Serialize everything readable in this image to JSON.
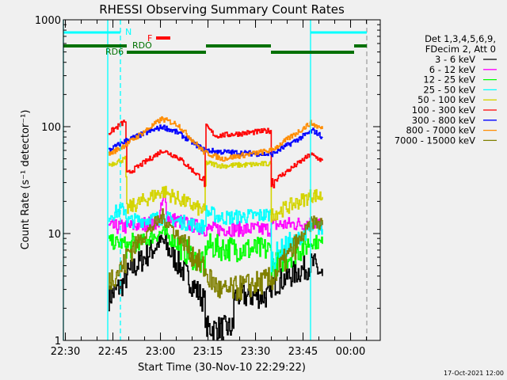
{
  "chart_data": {
    "type": "line",
    "title": "RHESSI Observing Summary Count Rates",
    "xlabel": "Start Time (30-Nov-10 22:29:22)",
    "ylabel": "Count Rate (s⁻¹ detector⁻¹)",
    "yscale": "log",
    "ylim": [
      1,
      1000
    ],
    "xlim_minutes_from_start": [
      0,
      100
    ],
    "y_ticks": [
      {
        "v": 1,
        "label": "1"
      },
      {
        "v": 10,
        "label": "10"
      },
      {
        "v": 100,
        "label": "100"
      },
      {
        "v": 1000,
        "label": "1000"
      }
    ],
    "x_ticks": [
      {
        "m": 0.633,
        "label": "22:30"
      },
      {
        "m": 15.633,
        "label": "22:45"
      },
      {
        "m": 30.633,
        "label": "23:00"
      },
      {
        "m": 45.633,
        "label": "23:15"
      },
      {
        "m": 60.633,
        "label": "23:30"
      },
      {
        "m": 75.633,
        "label": "23:45"
      },
      {
        "m": 90.633,
        "label": "00:00"
      }
    ],
    "legend_header": [
      "Det 1,3,4,5,6,9,",
      "FDecim 2, Att 0"
    ],
    "legend_position": "right",
    "series": [
      {
        "name": "3 - 6 keV",
        "color": "#000000",
        "points": [
          [
            14.25,
            2.5
          ],
          [
            19.5,
            3.6
          ],
          [
            20,
            4.1
          ],
          [
            31,
            8.7
          ],
          [
            44.5,
            2.3
          ],
          [
            45,
            1.3
          ],
          [
            53.7,
            1.3
          ],
          [
            53.8,
            2.6
          ],
          [
            65.5,
            2.6
          ],
          [
            65.6,
            3.3
          ],
          [
            78.75,
            5.2
          ],
          [
            81.75,
            4
          ]
        ]
      },
      {
        "name": "6 - 12 keV",
        "color": "#ff00ff",
        "points": [
          [
            14.25,
            11.5
          ],
          [
            20,
            11.5
          ],
          [
            30,
            13
          ],
          [
            31.7,
            23
          ],
          [
            33,
            14
          ],
          [
            44.5,
            11
          ],
          [
            45,
            11
          ],
          [
            65.5,
            11
          ],
          [
            65.6,
            12
          ],
          [
            78.75,
            12.5
          ],
          [
            81.75,
            12
          ]
        ]
      },
      {
        "name": "12 - 25 keV",
        "color": "#00ff00",
        "points": [
          [
            14.25,
            8.4
          ],
          [
            19.5,
            8
          ],
          [
            20,
            7.3
          ],
          [
            31.25,
            10.3
          ],
          [
            44.5,
            4.9
          ],
          [
            45,
            7.7
          ],
          [
            50,
            7.3
          ],
          [
            65.5,
            7
          ],
          [
            65.6,
            4.9
          ],
          [
            78.75,
            8.5
          ],
          [
            81.75,
            8
          ]
        ]
      },
      {
        "name": "25 - 50 keV",
        "color": "#00ffff",
        "points": [
          [
            14.25,
            15
          ],
          [
            19.5,
            17
          ],
          [
            20,
            13
          ],
          [
            31.25,
            14
          ],
          [
            44.5,
            11.5
          ],
          [
            45,
            16
          ],
          [
            50,
            14
          ],
          [
            65.5,
            15
          ],
          [
            65.6,
            5.8
          ],
          [
            78.75,
            11.5
          ],
          [
            81.75,
            11
          ]
        ]
      },
      {
        "name": "50 - 100 keV",
        "color": "#d4d400",
        "points": [
          [
            14.25,
            44
          ],
          [
            19.5,
            50
          ],
          [
            20,
            17
          ],
          [
            31.25,
            25
          ],
          [
            44.5,
            16
          ],
          [
            45,
            46
          ],
          [
            50,
            43
          ],
          [
            65.5,
            45
          ],
          [
            65.6,
            15
          ],
          [
            78.75,
            23
          ],
          [
            81.75,
            22
          ]
        ]
      },
      {
        "name": "100 - 300 keV",
        "color": "#ff0000",
        "points": [
          [
            14.25,
            87
          ],
          [
            19.5,
            113
          ],
          [
            20,
            36
          ],
          [
            31.25,
            60
          ],
          [
            36,
            52
          ],
          [
            44.5,
            31
          ],
          [
            45,
            100
          ],
          [
            48,
            82
          ],
          [
            65.5,
            92
          ],
          [
            65.6,
            30
          ],
          [
            78,
            55
          ],
          [
            81.75,
            48
          ]
        ]
      },
      {
        "name": "300 - 800 keV",
        "color": "#0000ff",
        "points": [
          [
            14.25,
            60
          ],
          [
            20,
            75
          ],
          [
            31.25,
            100
          ],
          [
            36,
            88
          ],
          [
            44.5,
            60
          ],
          [
            45,
            60
          ],
          [
            50,
            58
          ],
          [
            65.5,
            55
          ],
          [
            65.6,
            55
          ],
          [
            78.75,
            92
          ],
          [
            81.75,
            80
          ]
        ]
      },
      {
        "name": "800 - 7000 keV",
        "color": "#ff8c00",
        "points": [
          [
            14.25,
            55
          ],
          [
            20,
            69
          ],
          [
            31,
            118
          ],
          [
            36,
            105
          ],
          [
            44.5,
            57
          ],
          [
            45,
            57
          ],
          [
            50,
            50
          ],
          [
            65.5,
            60
          ],
          [
            65.6,
            60
          ],
          [
            78,
            108
          ],
          [
            81.75,
            95
          ]
        ]
      },
      {
        "name": "7000 - 15000 keV",
        "color": "#808000",
        "points": [
          [
            14.25,
            3.7
          ],
          [
            19.5,
            5.2
          ],
          [
            20,
            6.5
          ],
          [
            31.25,
            14.5
          ],
          [
            44.5,
            4.6
          ],
          [
            45,
            4.1
          ],
          [
            50,
            2.8
          ],
          [
            65.5,
            3.7
          ],
          [
            65.6,
            3.7
          ],
          [
            78.75,
            13
          ],
          [
            81.75,
            12
          ]
        ]
      }
    ],
    "vertical_markers": [
      {
        "m": 0,
        "color": "#00ffff",
        "style": "solid"
      },
      {
        "m": 14,
        "color": "#00ffff",
        "style": "solid"
      },
      {
        "m": 18,
        "color": "#00ffff",
        "style": "dashed"
      },
      {
        "m": 78,
        "color": "#00ffff",
        "style": "solid"
      },
      {
        "m": 95.75,
        "color": "#a0a0a0",
        "style": "dashed"
      }
    ],
    "flag_bars": [
      {
        "label": "N",
        "color": "#00ffff",
        "level": 0,
        "intervals": [
          [
            0,
            18
          ],
          [
            78,
            95.75
          ]
        ]
      },
      {
        "label": "F",
        "color": "#ff0000",
        "level": 1,
        "intervals": [
          [
            29.25,
            33.75
          ]
        ]
      },
      {
        "label": "RDO",
        "color": "#007000",
        "level": 2,
        "intervals": [
          [
            0,
            20
          ],
          [
            45,
            65.5
          ],
          [
            91.75,
            95.75
          ]
        ]
      },
      {
        "label": "RD6",
        "color": "#007000",
        "level": 3,
        "intervals": [
          [
            20,
            45
          ],
          [
            65.5,
            91.75
          ]
        ]
      }
    ]
  },
  "footer_date": "17-Oct-2021 12:00"
}
